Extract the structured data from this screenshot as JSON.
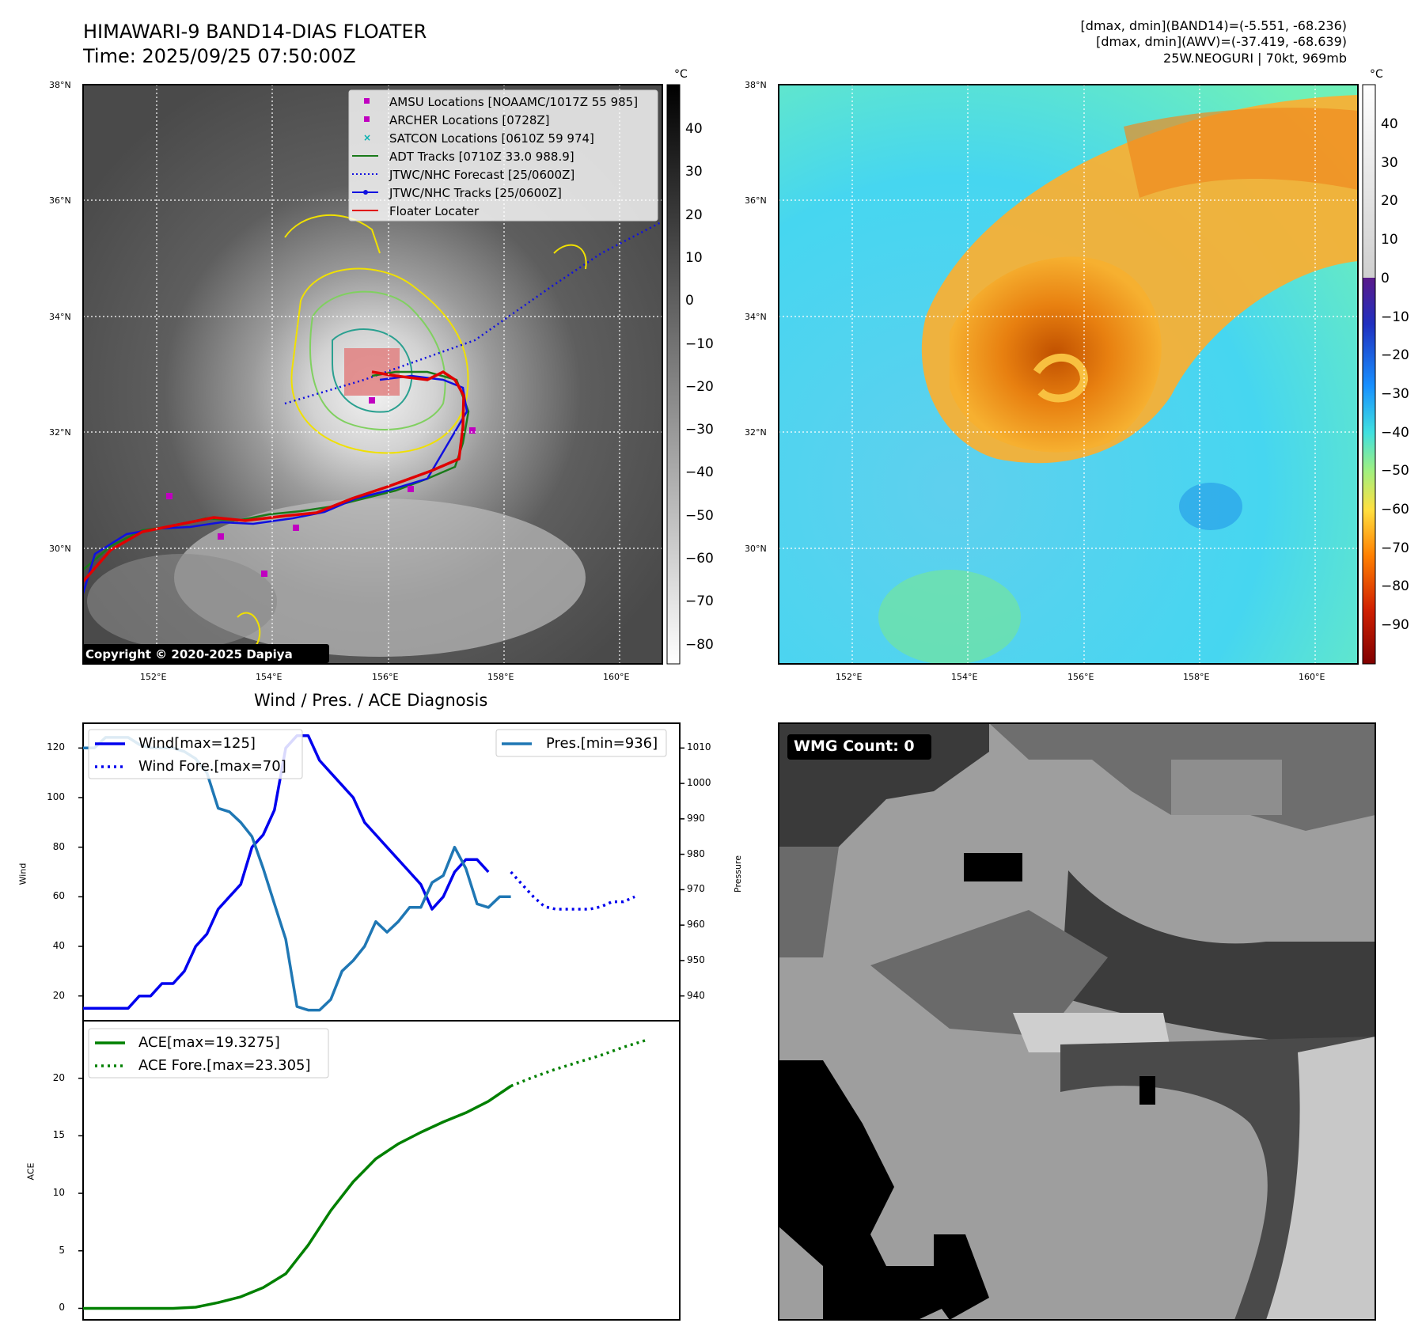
{
  "header": {
    "title": "HIMAWARI-9 BAND14-DIAS FLOATER",
    "time": "Time: 2025/09/25 07:50:00Z",
    "info_line1": "[dmax, dmin](BAND14)=(-5.551, -68.236)",
    "info_line2": "[dmax, dmin](AWV)=(-37.419, -68.639)",
    "info_line3": "25W.NEOGURI | 70kt, 969mb"
  },
  "map": {
    "lat_labels": [
      "38°N",
      "36°N",
      "34°N",
      "32°N",
      "30°N"
    ],
    "lon_labels": [
      "152°E",
      "154°E",
      "156°E",
      "158°E",
      "160°E"
    ],
    "copyright": "Copyright © 2020-2025 Dapiya",
    "legend": [
      {
        "label": "AMSU Locations [NOAAMC/1017Z 55 985]",
        "color": "#c000c0",
        "marker": "square"
      },
      {
        "label": "ARCHER Locations [0728Z]",
        "color": "#c000c0",
        "marker": "square"
      },
      {
        "label": "SATCON Locations [0610Z 59 974]",
        "color": "#00b0b0",
        "marker": "x"
      },
      {
        "label": "ADT Tracks [0710Z 33.0 988.9]",
        "color": "#1a7a1a",
        "marker": "line"
      },
      {
        "label": "JTWC/NHC Forecast [25/0600Z]",
        "color": "#1010e0",
        "marker": "dotted"
      },
      {
        "label": "JTWC/NHC Tracks [25/0600Z]",
        "color": "#1010e0",
        "marker": "line-dot"
      },
      {
        "label": "Floater Locater",
        "color": "#e00000",
        "marker": "line"
      }
    ]
  },
  "colorbars": {
    "unit": "°C",
    "band14_ticks": [
      "40",
      "30",
      "20",
      "10",
      "0",
      "−10",
      "−20",
      "−30",
      "−40",
      "−50",
      "−60",
      "−70",
      "−80"
    ],
    "awv_ticks": [
      "40",
      "30",
      "20",
      "10",
      "0",
      "−10",
      "−20",
      "−30",
      "−40",
      "−50",
      "−60",
      "−70",
      "−80",
      "−90"
    ]
  },
  "wmg": {
    "label": "WMG Count: 0"
  },
  "colors": {
    "wind": "#0000ee",
    "pressure": "#1f77b4",
    "ace": "#008000"
  },
  "chart_data": [
    {
      "type": "line",
      "title": "Wind / Pres. / ACE Diagnosis",
      "ylabel": "Wind",
      "y2label": "Pressure",
      "ylim": [
        10,
        130
      ],
      "y2lim": [
        933,
        1017
      ],
      "yticks": [
        "20",
        "40",
        "60",
        "80",
        "100",
        "120"
      ],
      "y2ticks": [
        "940",
        "950",
        "960",
        "970",
        "980",
        "990",
        "1000",
        "1010"
      ],
      "xlim": [
        0,
        53
      ],
      "legend_left": [
        "Wind[max=125]",
        "Wind Fore.[max=70]"
      ],
      "legend_right": [
        "Pres.[min=936]"
      ],
      "series": [
        {
          "name": "Wind[max=125]",
          "axis": "left",
          "style": "solid",
          "x": [
            0,
            1,
            2,
            3,
            4,
            5,
            6,
            7,
            8,
            9,
            10,
            11,
            12,
            13,
            14,
            15,
            16,
            17,
            18,
            19,
            20,
            21,
            22,
            23,
            24,
            25,
            26,
            27,
            28,
            29,
            30,
            31,
            32,
            33,
            34,
            35,
            36,
            37,
            38,
            39
          ],
          "values": [
            15,
            15,
            15,
            15,
            15,
            20,
            20,
            25,
            25,
            30,
            40,
            45,
            55,
            60,
            65,
            80,
            85,
            95,
            120,
            125,
            125,
            115,
            110,
            105,
            100,
            90,
            85,
            80,
            75,
            70,
            65,
            55,
            60,
            70,
            75,
            75,
            70,
            null,
            null,
            null
          ]
        },
        {
          "name": "Wind Fore.[max=70]",
          "axis": "left",
          "style": "dotted",
          "x": [
            38,
            39,
            40,
            41,
            42,
            43,
            44,
            45,
            46,
            47,
            48,
            49
          ],
          "values": [
            70,
            65,
            60,
            56,
            55,
            55,
            55,
            55,
            56,
            58,
            58,
            60
          ]
        },
        {
          "name": "Pres.[min=936]",
          "axis": "right",
          "style": "solid",
          "x": [
            0,
            1,
            2,
            3,
            4,
            5,
            6,
            7,
            8,
            9,
            10,
            11,
            12,
            13,
            14,
            15,
            16,
            17,
            18,
            19,
            20,
            21,
            22,
            23,
            24,
            25,
            26,
            27,
            28,
            29,
            30,
            31,
            32,
            33,
            34,
            35,
            36,
            37,
            38
          ],
          "values": [
            1010,
            1010,
            1013,
            1013,
            1013,
            1011,
            1010,
            1010,
            1010,
            1009,
            1007,
            1003,
            993,
            992,
            989,
            985,
            976,
            966,
            956,
            937,
            936,
            936,
            939,
            947,
            950,
            954,
            961,
            958,
            961,
            965,
            965,
            972,
            974,
            982,
            976,
            966,
            965,
            968,
            968
          ]
        }
      ]
    },
    {
      "type": "line",
      "ylabel": "ACE",
      "ylim": [
        -1,
        25
      ],
      "yticks": [
        "0",
        "5",
        "10",
        "15",
        "20"
      ],
      "xlim": [
        0,
        53
      ],
      "legend": [
        "ACE[max=19.3275]",
        "ACE Fore.[max=23.305]"
      ],
      "series": [
        {
          "name": "ACE[max=19.3275]",
          "style": "solid",
          "x": [
            0,
            2,
            4,
            6,
            8,
            10,
            12,
            14,
            16,
            18,
            20,
            22,
            24,
            26,
            28,
            30,
            32,
            34,
            36,
            38
          ],
          "values": [
            0,
            0,
            0,
            0,
            0,
            0.1,
            0.5,
            1.0,
            1.8,
            3.0,
            5.5,
            8.5,
            11,
            13,
            14.3,
            15.3,
            16.2,
            17.0,
            18.0,
            19.3275
          ]
        },
        {
          "name": "ACE Fore.[max=23.305]",
          "style": "dotted",
          "x": [
            38,
            40,
            42,
            44,
            46,
            48,
            50
          ],
          "values": [
            19.3275,
            20.1,
            20.8,
            21.4,
            22.0,
            22.7,
            23.305
          ]
        }
      ]
    }
  ]
}
